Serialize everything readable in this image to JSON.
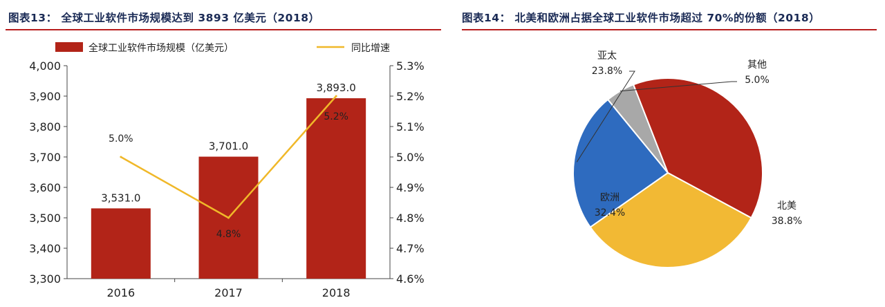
{
  "charts": [
    {
      "id": "fig13",
      "title": "图表13：  全球工业软件市场规模达到 3893 亿美元（2018）"
    },
    {
      "id": "fig14",
      "title": "图表14：  北美和欧洲占据全球工业软件市场超过 70%的份额（2018）"
    }
  ],
  "colors": {
    "bar": "#b22418",
    "line": "#f0b829",
    "title_rule": "#b71c1c",
    "pie_asia": "#2e6bbf",
    "pie_other": "#a8a8a8",
    "pie_na": "#b22418",
    "pie_eu": "#f2b934"
  },
  "chart_data": [
    {
      "type": "bar",
      "categories": [
        "2016",
        "2017",
        "2018"
      ],
      "series": [
        {
          "name": "全球工业软件市场规模（亿美元）",
          "type": "bar",
          "axis": "left",
          "values": [
            3531.0,
            3701.0,
            3893.0
          ],
          "labels": [
            "3,531.0",
            "3,701.0",
            "3,893.0"
          ]
        },
        {
          "name": "同比增速",
          "type": "line",
          "axis": "right",
          "values": [
            5.0,
            4.8,
            5.2
          ],
          "labels": [
            "5.0%",
            "4.8%",
            "5.2%"
          ]
        }
      ],
      "ylim": [
        3300,
        4000
      ],
      "yticks": [
        "3,300",
        "3,400",
        "3,500",
        "3,600",
        "3,700",
        "3,800",
        "3,900",
        "4,000"
      ],
      "y2lim": [
        4.6,
        5.3
      ],
      "y2ticks": [
        "4.6%",
        "4.7%",
        "4.8%",
        "4.9%",
        "5.0%",
        "5.1%",
        "5.2%",
        "5.3%"
      ],
      "legend": "top-left",
      "grid": false
    },
    {
      "type": "pie",
      "slices": [
        {
          "name": "亚太",
          "value": 23.8,
          "label": "23.8%"
        },
        {
          "name": "其他",
          "value": 5.0,
          "label": "5.0%"
        },
        {
          "name": "北美",
          "value": 38.8,
          "label": "38.8%"
        },
        {
          "name": "欧洲",
          "value": 32.4,
          "label": "32.4%"
        }
      ],
      "start_angle_deg": 235,
      "direction": "clockwise"
    }
  ]
}
